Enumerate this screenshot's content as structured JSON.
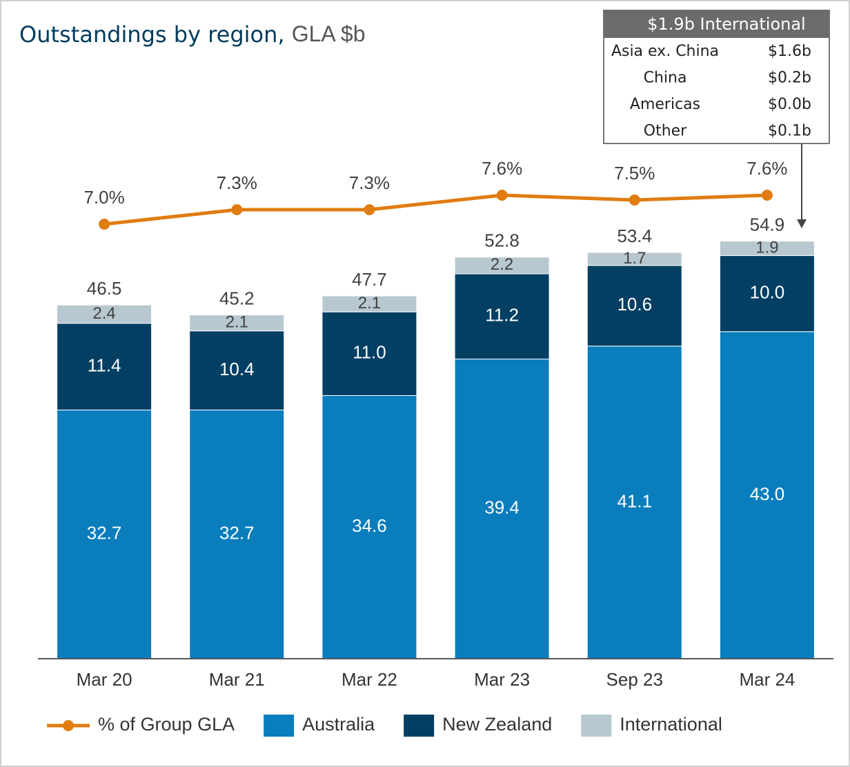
{
  "chart_data": {
    "type": "bar",
    "title": "Outstandings by region,",
    "subtitle": "GLA $b",
    "categories": [
      "Mar 20",
      "Mar 21",
      "Mar 22",
      "Mar 23",
      "Sep 23",
      "Mar 24"
    ],
    "stacked": true,
    "ylim": [
      0,
      73
    ],
    "y2lim": [
      -2,
      9.5
    ],
    "series": [
      {
        "name": "Australia",
        "color": "#0a7dbd",
        "values": [
          32.7,
          32.7,
          34.6,
          39.4,
          41.1,
          43.0
        ],
        "value_labels": [
          "32.7",
          "32.7",
          "34.6",
          "39.4",
          "41.1",
          "43.0"
        ]
      },
      {
        "name": "New Zealand",
        "color": "#033f63",
        "values": [
          11.4,
          10.4,
          11.0,
          11.2,
          10.6,
          10.0
        ],
        "value_labels": [
          "11.4",
          "10.4",
          "11.0",
          "11.2",
          "10.6",
          "10.0"
        ]
      },
      {
        "name": "International",
        "color": "#b8c8d1",
        "values": [
          2.4,
          2.1,
          2.1,
          2.2,
          1.7,
          1.9
        ],
        "value_labels": [
          "2.4",
          "2.1",
          "2.1",
          "2.2",
          "1.7",
          "1.9"
        ]
      },
      {
        "name": "% of Group GLA",
        "type": "line",
        "axis": "y2",
        "color": "#e07c10",
        "values": [
          7.0,
          7.3,
          7.3,
          7.6,
          7.5,
          7.6
        ],
        "value_labels": [
          "7.0%",
          "7.3%",
          "7.3%",
          "7.6%",
          "7.5%",
          "7.6%"
        ]
      }
    ],
    "totals": [
      46.5,
      45.2,
      47.7,
      52.8,
      53.4,
      54.9
    ],
    "legend_position": "bottom",
    "inset_table": {
      "title": "$1.9b International",
      "rows": [
        [
          "Asia ex. China",
          "$1.6b"
        ],
        [
          "China",
          "$0.2b"
        ],
        [
          "Americas",
          "$0.0b"
        ],
        [
          "Other",
          "$0.1b"
        ]
      ]
    }
  }
}
